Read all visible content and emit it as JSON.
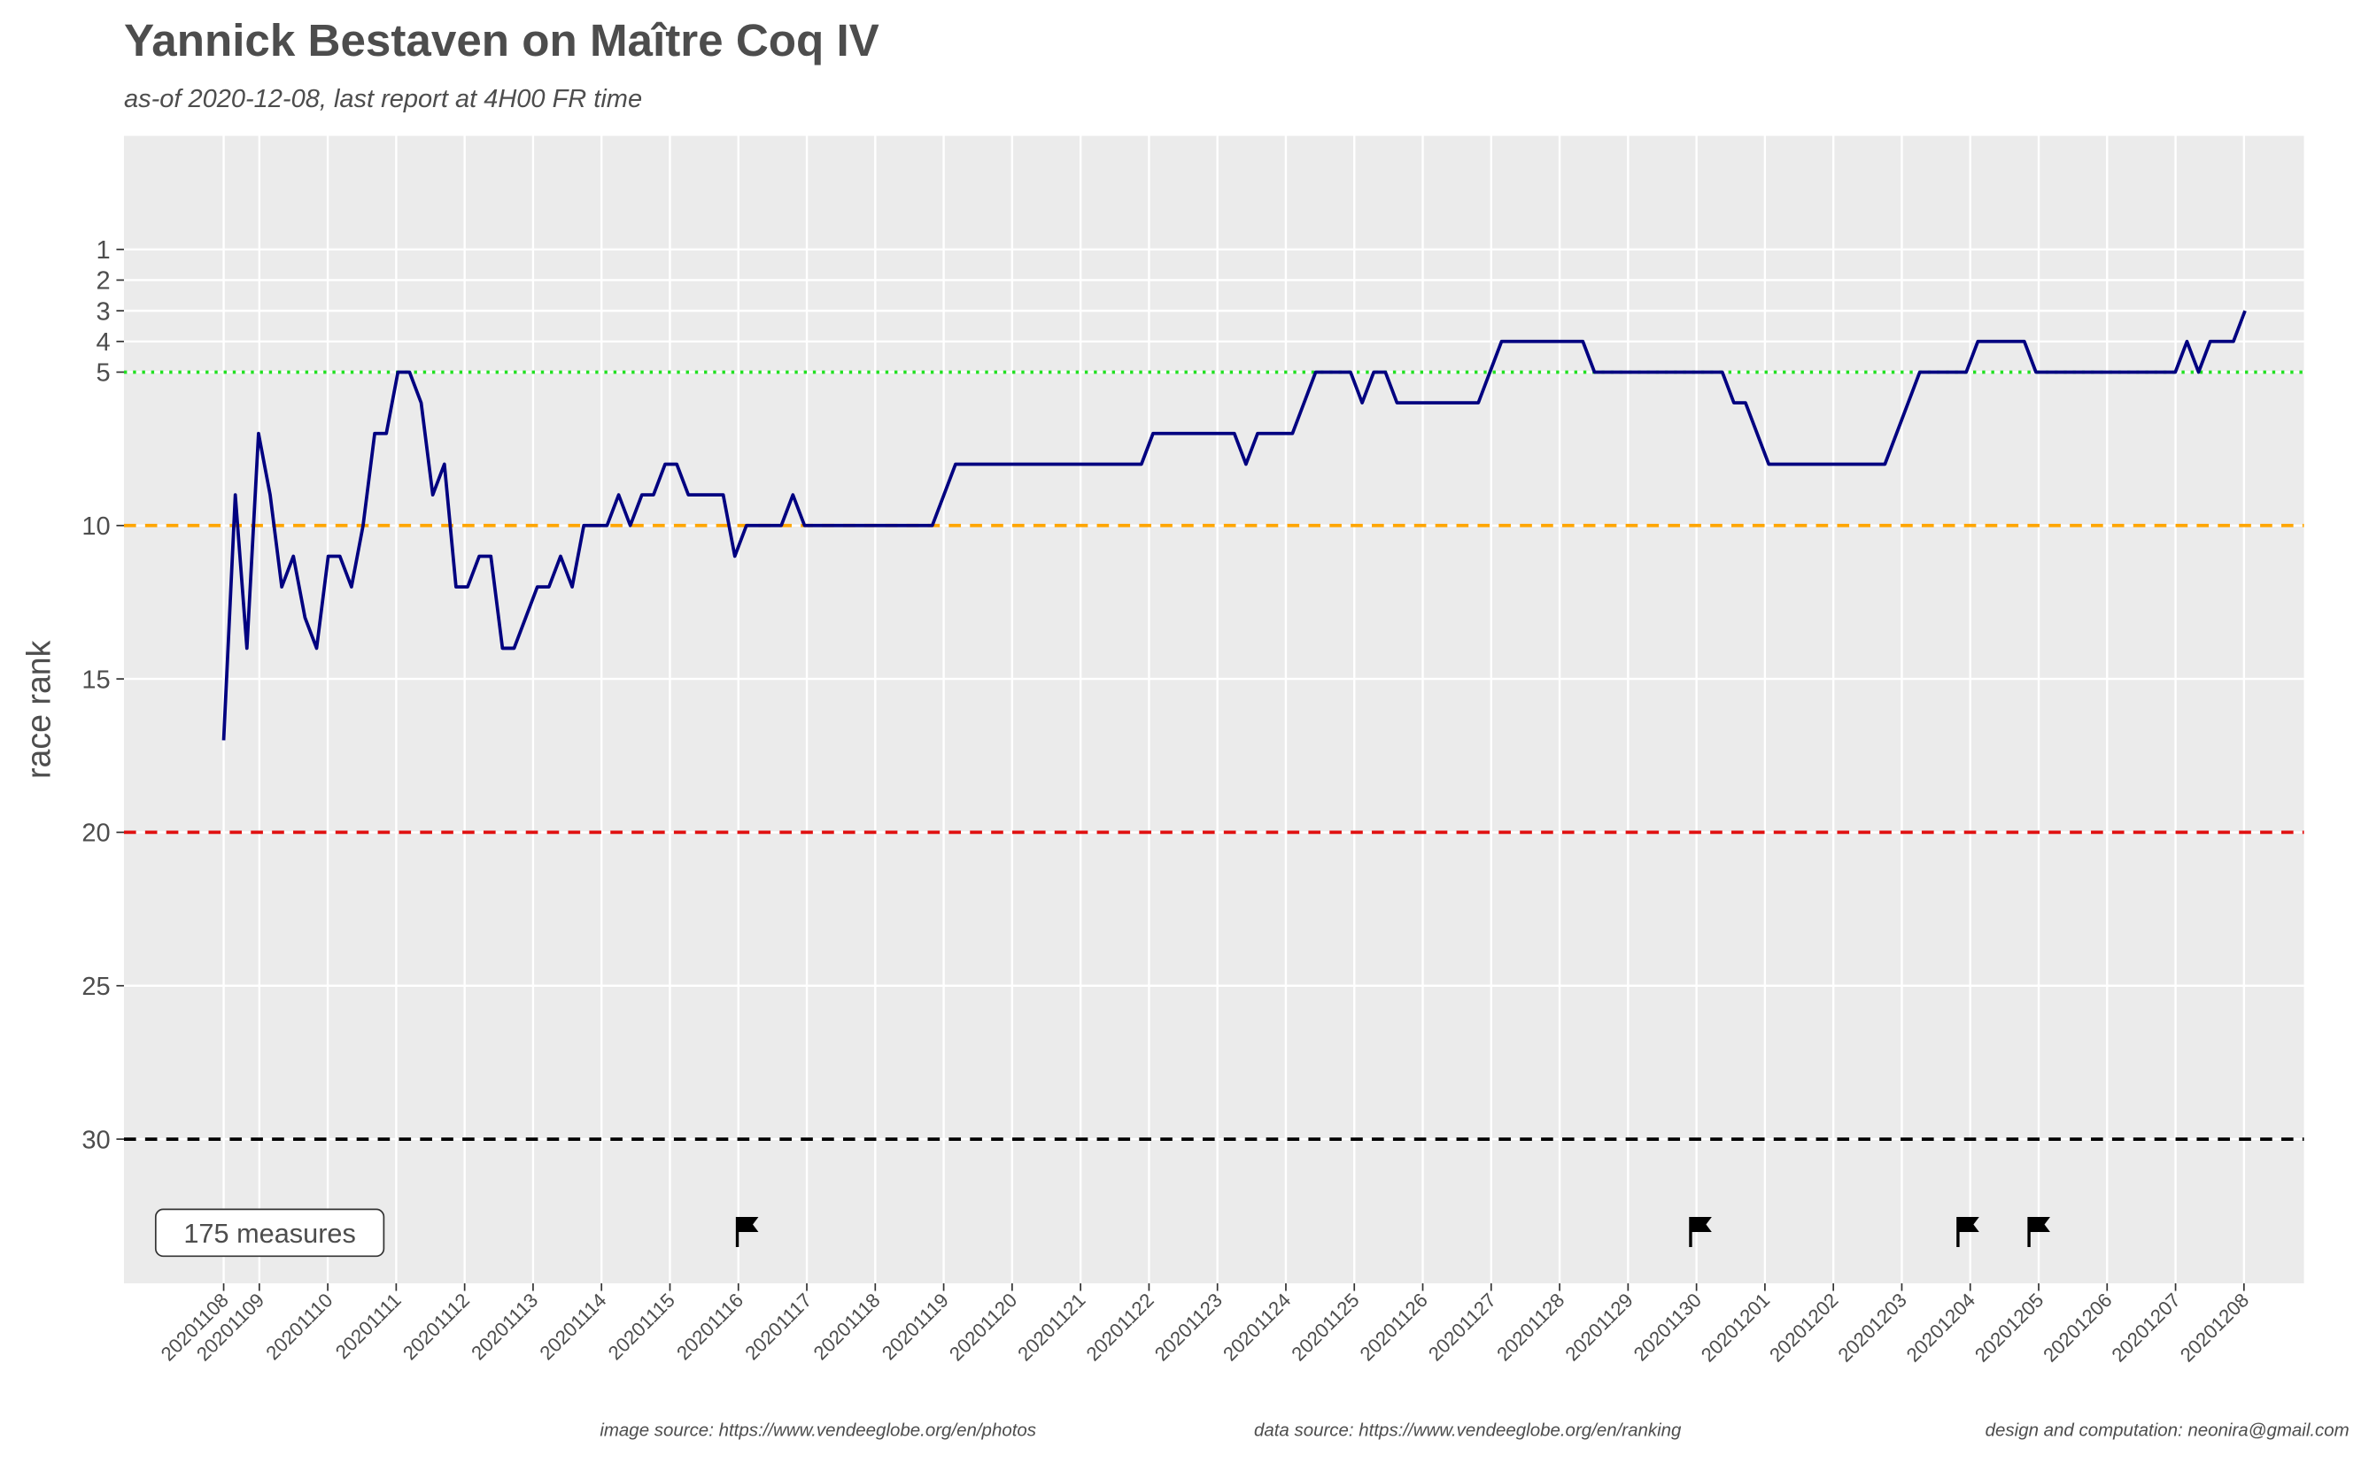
{
  "chart_data": {
    "type": "line",
    "title": "Yannick Bestaven on Maître Coq IV",
    "subtitle": "as-of 2020-12-08, last report at 4H00 FR time",
    "y_label": "race rank",
    "annotation": "175 measures",
    "series": [
      {
        "name": "race rank",
        "color": "#000080",
        "values": [
          17,
          9,
          14,
          7,
          9,
          12,
          11,
          13,
          14,
          11,
          11,
          12,
          10,
          7,
          7,
          5,
          5,
          6,
          9,
          8,
          12,
          12,
          11,
          11,
          14,
          14,
          13,
          12,
          12,
          11,
          12,
          10,
          10,
          10,
          9,
          10,
          9,
          9,
          8,
          8,
          9,
          9,
          9,
          9,
          11,
          10,
          10,
          10,
          10,
          9,
          10,
          10,
          10,
          10,
          10,
          10,
          10,
          10,
          10,
          10,
          10,
          10,
          9,
          8,
          8,
          8,
          8,
          8,
          8,
          8,
          8,
          8,
          8,
          8,
          8,
          8,
          8,
          8,
          8,
          8,
          7,
          7,
          7,
          7,
          7,
          7,
          7,
          7,
          8,
          7,
          7,
          7,
          7,
          6,
          5,
          5,
          5,
          5,
          6,
          5,
          5,
          6,
          6,
          6,
          6,
          6,
          6,
          6,
          6,
          5,
          4,
          4,
          4,
          4,
          4,
          4,
          4,
          4,
          5,
          5,
          5,
          5,
          5,
          5,
          5,
          5,
          5,
          5,
          5,
          5,
          6,
          6,
          7,
          8,
          8,
          8,
          8,
          8,
          8,
          8,
          8,
          8,
          8,
          8,
          7,
          6,
          5,
          5,
          5,
          5,
          5,
          4,
          4,
          4,
          4,
          4,
          5,
          5,
          5,
          5,
          5,
          5,
          5,
          5,
          5,
          5,
          5,
          5,
          5,
          4,
          5,
          4,
          4,
          4,
          3
        ]
      }
    ],
    "xticks": [
      "20201108",
      "20201109",
      "20201110",
      "20201111",
      "20201112",
      "20201113",
      "20201114",
      "20201115",
      "20201116",
      "20201117",
      "20201118",
      "20201119",
      "20201120",
      "20201121",
      "20201122",
      "20201123",
      "20201124",
      "20201125",
      "20201126",
      "20201127",
      "20201128",
      "20201129",
      "20201130",
      "20201201",
      "20201202",
      "20201203",
      "20201204",
      "20201205",
      "20201206",
      "20201207",
      "20201208"
    ],
    "ylim": [
      -2.7,
      34.7
    ],
    "y_reversed": true,
    "yticks": [
      1,
      2,
      3,
      4,
      5,
      10,
      15,
      20,
      25,
      30
    ],
    "grid": true,
    "hlines": [
      {
        "value": 5,
        "color": "#22e022",
        "dash": "dotted"
      },
      {
        "value": 10,
        "color": "#ffa500",
        "dash": "dashed"
      },
      {
        "value": 20,
        "color": "#e01010",
        "dash": "dashed"
      },
      {
        "value": 30,
        "color": "#000000",
        "dash": "dashed"
      }
    ],
    "captions": [
      "image source: https://www.vendeeglobe.org/en/photos",
      "data source: https://www.vendeeglobe.org/en/ranking",
      "design and computation: neonira@gmail.com"
    ]
  }
}
